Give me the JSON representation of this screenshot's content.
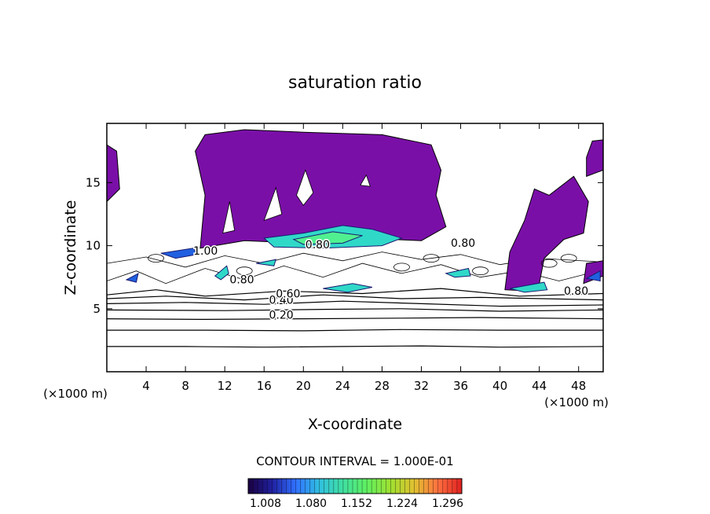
{
  "chart_data": {
    "type": "contour",
    "title": "saturation ratio",
    "xlabel": "X-coordinate",
    "ylabel": "Z-coordinate",
    "x_unit": "(×1000 m)",
    "y_unit": "(×1000 m)",
    "xlim": [
      0,
      50.5
    ],
    "ylim": [
      0,
      19.7
    ],
    "x_ticks": [
      "4",
      "8",
      "12",
      "16",
      "20",
      "24",
      "28",
      "32",
      "36",
      "40",
      "44",
      "48"
    ],
    "y_ticks": [
      "5",
      "10",
      "15"
    ],
    "contour_interval_label": "CONTOUR INTERVAL = 1.000E-01",
    "contour_labels": [
      "0.20",
      "0.40",
      "0.60",
      "0.80",
      "0.80",
      "0.80",
      "0.80",
      "1.00"
    ],
    "colorbar": {
      "ticks": [
        "1.008",
        "1.080",
        "1.152",
        "1.224",
        "1.296"
      ],
      "stops": [
        "#1a0040",
        "#2020a0",
        "#3070ff",
        "#30c0e0",
        "#40e0a0",
        "#60f060",
        "#a0e030",
        "#e0c030",
        "#ff7040",
        "#e02020"
      ]
    },
    "fill_colors": {
      "supersaturated": "#7a0fa8",
      "cyan": "#30d8c8",
      "green": "#50f090",
      "blue": "#2060e0",
      "navy": "#1a1a70"
    }
  }
}
